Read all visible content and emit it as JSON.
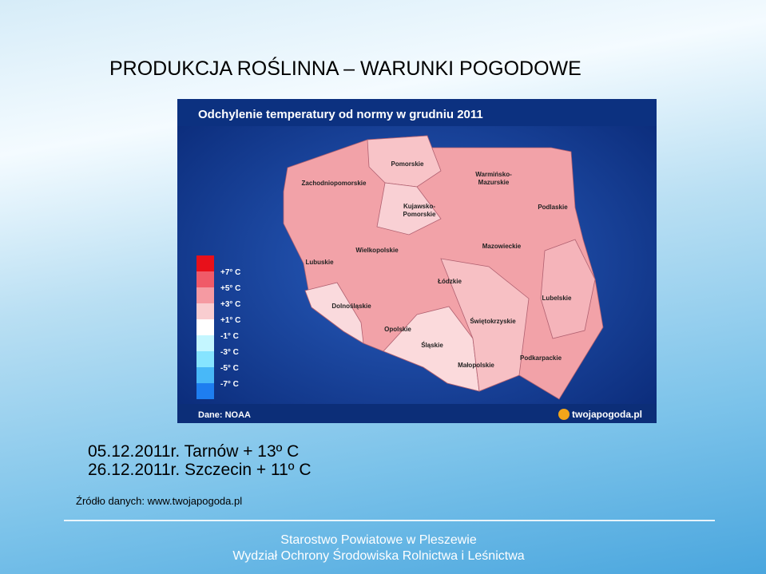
{
  "header": {
    "title": "PRODUKCJA ROŚLINNA – WARUNKI POGODOWE"
  },
  "map": {
    "title": "Odchylenie temperatury od normy w grudniu 2011",
    "legend": [
      "+7° C",
      "+5° C",
      "+3° C",
      "+1° C",
      "-1° C",
      "-3° C",
      "-5° C",
      "-7° C"
    ],
    "regions": [
      [
        "Pomorskie"
      ],
      [
        "Zachodniopomorskie"
      ],
      [
        "Warmińsko-",
        "Mazurskie"
      ],
      [
        "Kujawsko-",
        "Pomorskie"
      ],
      [
        "Podlaskie"
      ],
      [
        "Lubuskie"
      ],
      [
        "Wielkopolskie"
      ],
      [
        "Mazowieckie"
      ],
      [
        "Łódzkie"
      ],
      [
        "Lubelskie"
      ],
      [
        "Dolnośląskie"
      ],
      [
        "Opolskie"
      ],
      [
        "Świętokrzyskie"
      ],
      [
        "Śląskie"
      ],
      [
        "Małopolskie"
      ],
      [
        "Podkarpackie"
      ]
    ],
    "source": "Dane: NOAA",
    "logo": "twojapogoda.pl"
  },
  "notes": [
    "05.12.2011r. Tarnów + 13º C",
    "26.12.2011r. Szczecin + 11º C"
  ],
  "source": "Źródło danych: www.twojapogoda.pl",
  "footer": [
    "Starostwo Powiatowe w Pleszewie",
    "Wydział Ochrony Środowiska Rolnictwa i Leśnictwa"
  ]
}
